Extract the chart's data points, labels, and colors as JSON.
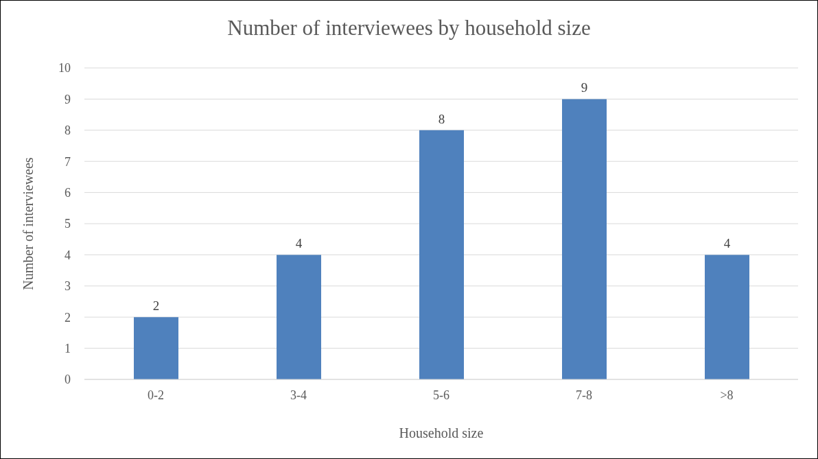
{
  "chart_data": {
    "type": "bar",
    "title": "Number of interviewees by household size",
    "xlabel": "Household size",
    "ylabel": "Number of interviewees",
    "categories": [
      "0-2",
      "3-4",
      "5-6",
      "7-8",
      ">8"
    ],
    "values": [
      2,
      4,
      8,
      9,
      4
    ],
    "color": "#4f81bd",
    "ylim": [
      0,
      10
    ],
    "yticks": [
      0,
      1,
      2,
      3,
      4,
      5,
      6,
      7,
      8,
      9,
      10
    ],
    "grid": "y",
    "data_labels": true
  }
}
